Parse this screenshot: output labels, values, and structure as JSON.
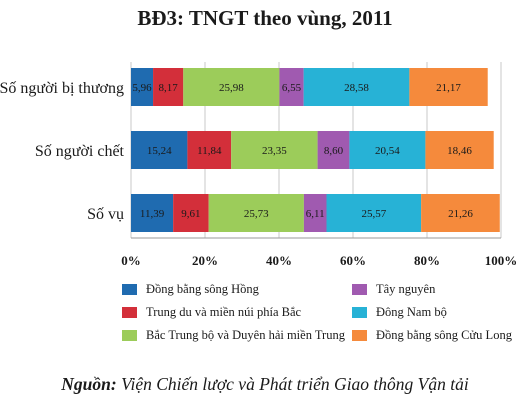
{
  "chart_data": {
    "type": "bar",
    "orientation": "horizontal",
    "stacked": true,
    "title": "BĐ3: TNGT theo vùng, 2011",
    "categories": [
      "Số người bị thương",
      "Số người chết",
      "Số vụ"
    ],
    "x_ticks": [
      "0%",
      "20%",
      "40%",
      "60%",
      "80%",
      "100%"
    ],
    "xlim": [
      0,
      100
    ],
    "legend_position": "bottom",
    "series": [
      {
        "name": "Đồng bằng sông Hồng",
        "color": "#1f6bb0",
        "values": [
          5.96,
          15.24,
          11.39
        ],
        "labels": [
          "5,96",
          "15,24",
          "11,39"
        ]
      },
      {
        "name": "Trung du và miền núi phía Bắc",
        "color": "#d32f3a",
        "values": [
          8.17,
          11.84,
          9.61
        ],
        "labels": [
          "8,17",
          "11,84",
          "9,61"
        ]
      },
      {
        "name": "Bắc Trung bộ và Duyên hải miền Trung",
        "color": "#9ccc5a",
        "values": [
          25.98,
          23.35,
          25.73
        ],
        "labels": [
          "25,98",
          "23,35",
          "25,73"
        ]
      },
      {
        "name": "Tây nguyên",
        "color": "#a05ab0",
        "values": [
          6.55,
          8.6,
          6.11
        ],
        "labels": [
          "6,55",
          "8,60",
          "6,11"
        ]
      },
      {
        "name": "Đông Nam bộ",
        "color": "#27b2d6",
        "values": [
          28.58,
          20.54,
          25.57
        ],
        "labels": [
          "28,58",
          "20,54",
          "25,57"
        ]
      },
      {
        "name": "Đồng bằng sông Cửu Long",
        "color": "#f58a3c",
        "values": [
          21.17,
          18.46,
          21.26
        ],
        "labels": [
          "21,17",
          "18,46",
          "21,26"
        ]
      }
    ]
  },
  "source": {
    "prefix": "Nguồn:",
    "text": "Viện Chiến lược và Phát triển Giao thông Vận tải"
  }
}
